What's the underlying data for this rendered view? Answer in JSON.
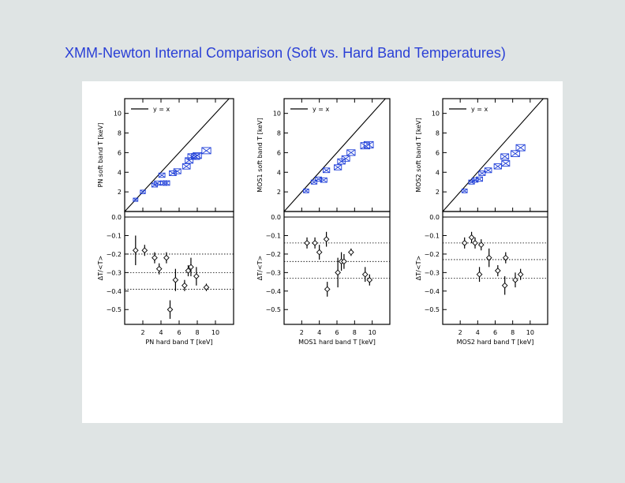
{
  "slide": {
    "title": "XMM-Newton Internal Comparison (Soft vs. Hard Band Temperatures)"
  },
  "colors": {
    "title": "#2a3fd6",
    "marker": "#1f3fd8",
    "ink": "#000000",
    "panel": "#ffffff",
    "background": "#dfe4e4"
  },
  "chart_data": [
    {
      "type": "scatter",
      "instrument": "PN",
      "xlabel": "PN hard band T [keV]",
      "xlim": [
        0,
        12
      ],
      "xticks": [
        "2",
        "4",
        "6",
        "8",
        "10"
      ],
      "top": {
        "ylabel": "PN soft band T [keV]",
        "ylim": [
          0,
          11.5
        ],
        "yticks": [
          "2",
          "4",
          "6",
          "8",
          "10"
        ],
        "legend": "y = x",
        "legend_position": "top-left",
        "points": [
          {
            "x": 1.2,
            "y": 1.2
          },
          {
            "x": 2.0,
            "y": 2.0
          },
          {
            "x": 3.3,
            "y": 2.7
          },
          {
            "x": 3.6,
            "y": 2.9
          },
          {
            "x": 4.1,
            "y": 3.7
          },
          {
            "x": 4.3,
            "y": 2.9
          },
          {
            "x": 4.6,
            "y": 2.9
          },
          {
            "x": 5.3,
            "y": 3.9
          },
          {
            "x": 5.8,
            "y": 4.1
          },
          {
            "x": 6.8,
            "y": 4.6
          },
          {
            "x": 7.1,
            "y": 5.2
          },
          {
            "x": 7.4,
            "y": 5.6
          },
          {
            "x": 7.8,
            "y": 5.6
          },
          {
            "x": 8.0,
            "y": 5.7
          },
          {
            "x": 9.0,
            "y": 6.2
          }
        ]
      },
      "bottom": {
        "ylabel": "ΔT/<T>",
        "ylim": [
          -0.58,
          0.03
        ],
        "yticks": [
          "0.0",
          "−0.1",
          "−0.2",
          "−0.3",
          "−0.4",
          "−0.5"
        ],
        "reference_lines": [
          -0.2,
          -0.3,
          -0.39
        ],
        "points": [
          {
            "x": 1.2,
            "y": -0.18,
            "err": 0.08
          },
          {
            "x": 2.2,
            "y": -0.18,
            "err": 0.03
          },
          {
            "x": 3.3,
            "y": -0.22,
            "err": 0.03
          },
          {
            "x": 3.8,
            "y": -0.28,
            "err": 0.03
          },
          {
            "x": 4.6,
            "y": -0.22,
            "err": 0.03
          },
          {
            "x": 5.0,
            "y": -0.5,
            "err": 0.05
          },
          {
            "x": 5.6,
            "y": -0.34,
            "err": 0.06
          },
          {
            "x": 6.6,
            "y": -0.37,
            "err": 0.03
          },
          {
            "x": 7.0,
            "y": -0.29,
            "err": 0.03
          },
          {
            "x": 7.3,
            "y": -0.27,
            "err": 0.05
          },
          {
            "x": 7.9,
            "y": -0.32,
            "err": 0.05
          },
          {
            "x": 9.0,
            "y": -0.38,
            "err": 0.02
          }
        ]
      }
    },
    {
      "type": "scatter",
      "instrument": "MOS1",
      "xlabel": "MOS1 hard band T [keV]",
      "xlim": [
        0,
        12
      ],
      "xticks": [
        "2",
        "4",
        "6",
        "8",
        "10"
      ],
      "top": {
        "ylabel": "MOS1 soft band T [keV]",
        "ylim": [
          0,
          11.5
        ],
        "yticks": [
          "2",
          "4",
          "6",
          "8",
          "10"
        ],
        "legend": "y = x",
        "legend_position": "top-left",
        "points": [
          {
            "x": 2.5,
            "y": 2.1
          },
          {
            "x": 3.4,
            "y": 3.0
          },
          {
            "x": 3.9,
            "y": 3.3
          },
          {
            "x": 4.5,
            "y": 3.2
          },
          {
            "x": 4.8,
            "y": 4.2
          },
          {
            "x": 6.1,
            "y": 4.5
          },
          {
            "x": 6.5,
            "y": 5.1
          },
          {
            "x": 7.0,
            "y": 5.4
          },
          {
            "x": 7.6,
            "y": 6.0
          },
          {
            "x": 9.2,
            "y": 6.7
          },
          {
            "x": 9.6,
            "y": 6.8
          }
        ]
      },
      "bottom": {
        "ylabel": "ΔT/<T>",
        "ylim": [
          -0.58,
          0.03
        ],
        "yticks": [
          "0.0",
          "−0.1",
          "−0.2",
          "−0.3",
          "−0.4",
          "−0.5"
        ],
        "reference_lines": [
          -0.14,
          -0.24,
          -0.33
        ],
        "points": [
          {
            "x": 2.6,
            "y": -0.14,
            "err": 0.03
          },
          {
            "x": 3.5,
            "y": -0.14,
            "err": 0.03
          },
          {
            "x": 4.0,
            "y": -0.19,
            "err": 0.04
          },
          {
            "x": 4.8,
            "y": -0.12,
            "err": 0.04
          },
          {
            "x": 4.9,
            "y": -0.39,
            "err": 0.04
          },
          {
            "x": 6.1,
            "y": -0.3,
            "err": 0.08
          },
          {
            "x": 6.5,
            "y": -0.24,
            "err": 0.05
          },
          {
            "x": 6.8,
            "y": -0.24,
            "err": 0.04
          },
          {
            "x": 7.6,
            "y": -0.19,
            "err": 0.02
          },
          {
            "x": 9.2,
            "y": -0.31,
            "err": 0.04
          },
          {
            "x": 9.7,
            "y": -0.34,
            "err": 0.03
          }
        ]
      }
    },
    {
      "type": "scatter",
      "instrument": "MOS2",
      "xlabel": "MOS2 hard band T [keV]",
      "xlim": [
        0,
        12
      ],
      "xticks": [
        "2",
        "4",
        "6",
        "8",
        "10"
      ],
      "top": {
        "ylabel": "MOS2 soft band T [keV]",
        "ylim": [
          0,
          11.5
        ],
        "yticks": [
          "2",
          "4",
          "6",
          "8",
          "10"
        ],
        "legend": "y = x",
        "legend_position": "top-left",
        "points": [
          {
            "x": 2.5,
            "y": 2.1
          },
          {
            "x": 3.3,
            "y": 3.0
          },
          {
            "x": 3.7,
            "y": 3.2
          },
          {
            "x": 4.2,
            "y": 3.3
          },
          {
            "x": 4.5,
            "y": 3.9
          },
          {
            "x": 5.2,
            "y": 4.2
          },
          {
            "x": 6.3,
            "y": 4.6
          },
          {
            "x": 7.1,
            "y": 5.6
          },
          {
            "x": 7.2,
            "y": 4.9
          },
          {
            "x": 8.3,
            "y": 5.9
          },
          {
            "x": 8.9,
            "y": 6.5
          }
        ]
      },
      "bottom": {
        "ylabel": "ΔT/<T>",
        "ylim": [
          -0.58,
          0.03
        ],
        "yticks": [
          "0.0",
          "−0.1",
          "−0.2",
          "−0.3",
          "−0.4",
          "−0.5"
        ],
        "reference_lines": [
          -0.14,
          -0.23,
          -0.33
        ],
        "points": [
          {
            "x": 2.5,
            "y": -0.14,
            "err": 0.03
          },
          {
            "x": 3.3,
            "y": -0.11,
            "err": 0.03
          },
          {
            "x": 3.7,
            "y": -0.14,
            "err": 0.03
          },
          {
            "x": 4.2,
            "y": -0.31,
            "err": 0.04
          },
          {
            "x": 4.4,
            "y": -0.15,
            "err": 0.03
          },
          {
            "x": 5.3,
            "y": -0.22,
            "err": 0.05
          },
          {
            "x": 6.3,
            "y": -0.29,
            "err": 0.03
          },
          {
            "x": 7.1,
            "y": -0.37,
            "err": 0.05
          },
          {
            "x": 7.2,
            "y": -0.22,
            "err": 0.03
          },
          {
            "x": 8.3,
            "y": -0.34,
            "err": 0.04
          },
          {
            "x": 8.9,
            "y": -0.31,
            "err": 0.03
          }
        ]
      }
    }
  ]
}
